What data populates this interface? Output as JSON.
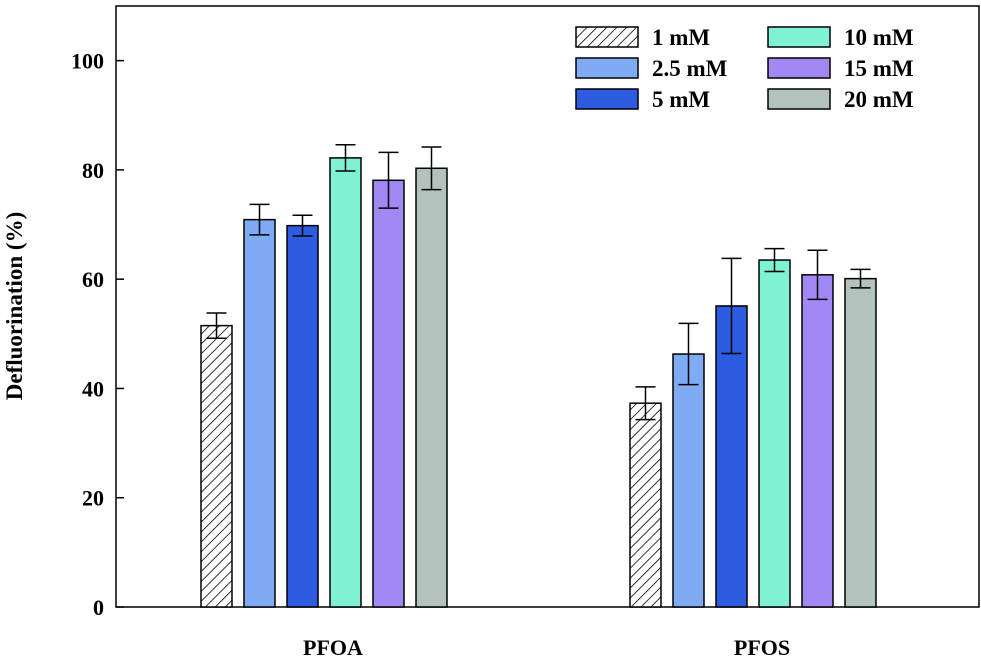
{
  "chart_data": {
    "type": "bar",
    "ylabel": "Defluorination  (%)",
    "xlabel": "",
    "ylim": [
      0,
      110
    ],
    "yticks": [
      0,
      20,
      40,
      60,
      80,
      100
    ],
    "grid": false,
    "legend_position": "top-right",
    "categories": [
      "PFOA",
      "PFOS"
    ],
    "series": [
      {
        "name": "1 mM",
        "pattern": "hatch",
        "color": "#ffffff",
        "values": [
          51.5,
          37.3
        ],
        "errors": [
          2.3,
          3.0
        ]
      },
      {
        "name": "2.5 mM",
        "color": "#7fabf4",
        "values": [
          70.9,
          46.3
        ],
        "errors": [
          2.8,
          5.6
        ]
      },
      {
        "name": "5 mM",
        "color": "#2d5ce0",
        "values": [
          69.8,
          55.1
        ],
        "errors": [
          1.9,
          8.7
        ]
      },
      {
        "name": "10 mM",
        "color": "#7ff2d4",
        "values": [
          82.2,
          63.5
        ],
        "errors": [
          2.4,
          2.1
        ]
      },
      {
        "name": "15 mM",
        "color": "#a188f2",
        "values": [
          78.1,
          60.8
        ],
        "errors": [
          5.1,
          4.5
        ]
      },
      {
        "name": "20 mM",
        "color": "#b3c2bd",
        "values": [
          80.3,
          60.1
        ],
        "errors": [
          3.9,
          1.7
        ]
      }
    ]
  }
}
